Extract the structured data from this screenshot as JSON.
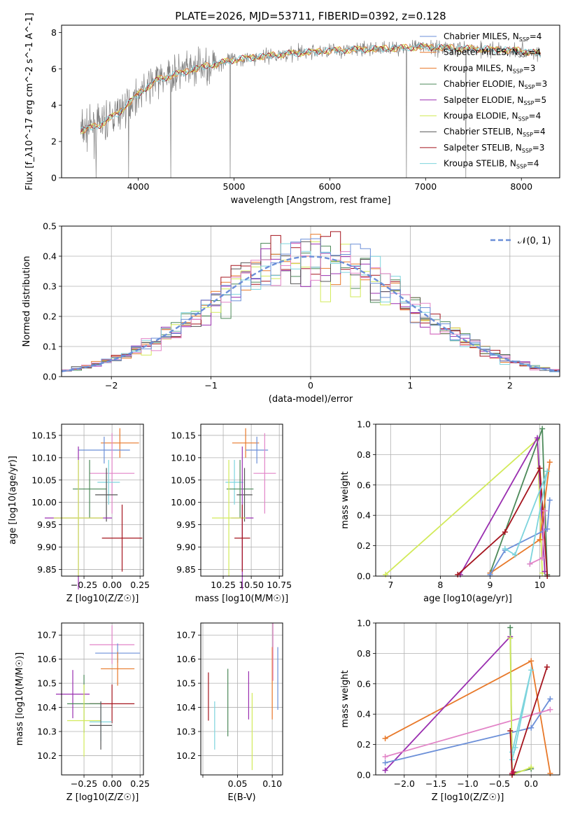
{
  "figure_title": "PLATE=2026, MJD=53711, FIBERID=0392, z=0.128",
  "colors": {
    "blue": "#6b8fd8",
    "orange": "#e8792a",
    "green": "#4d8a5a",
    "purple": "#9a2fb0",
    "yellowgreen": "#d2ea5a",
    "gray": "#555555",
    "darkred": "#a5141e",
    "cyan": "#7dd4dd",
    "pink": "#e284c7",
    "spectrum": "#7f7f7f"
  },
  "chart_data": [
    {
      "id": "spectrum",
      "type": "line",
      "title": "PLATE=2026, MJD=53711, FIBERID=0392, z=0.128",
      "xlabel": "wavelength [Angstrom, rest frame]",
      "ylabel": "Flux [f_λ10^-17 erg cm^-2 s^-1 A^-1]",
      "xlim": [
        3200,
        8400
      ],
      "ylim": [
        0,
        8.4
      ],
      "xticks": [
        4000,
        5000,
        6000,
        7000,
        8000
      ],
      "yticks": [
        0,
        2,
        4,
        6,
        8
      ],
      "grid": false,
      "legend_position": "right",
      "legend": [
        {
          "label": "Chabrier MILES, N_SSP=4",
          "color": "#6b8fd8"
        },
        {
          "label": "Salpeter MILES, N_SSP=4",
          "color": "#e8792a"
        },
        {
          "label": "Kroupa MILES, N_SSP=3",
          "color": "#e8792a"
        },
        {
          "label": "Chabrier ELODIE, N_SSP=3",
          "color": "#4d8a5a"
        },
        {
          "label": "Salpeter ELODIE, N_SSP=5",
          "color": "#9a2fb0"
        },
        {
          "label": "Kroupa ELODIE, N_SSP=4",
          "color": "#d2ea5a"
        },
        {
          "label": "Chabrier STELIB, N_SSP=4",
          "color": "#555555"
        },
        {
          "label": "Salpeter STELIB, N_SSP=3",
          "color": "#a5141e"
        },
        {
          "label": "Kroupa STELIB, N_SSP=4",
          "color": "#7dd4dd"
        }
      ],
      "continuum": {
        "x": [
          3400,
          3600,
          3800,
          4000,
          4200,
          4600,
          5000,
          5500,
          6000,
          6500,
          7000,
          7500,
          8000,
          8200
        ],
        "y": [
          2.6,
          2.9,
          3.6,
          4.6,
          5.4,
          6.0,
          6.5,
          6.8,
          7.0,
          7.1,
          7.2,
          7.1,
          7.0,
          6.8
        ]
      },
      "spikes": [
        {
          "x": 3560,
          "y": 0
        },
        {
          "x": 3900,
          "y": 0
        },
        {
          "x": 4340,
          "y": 0
        },
        {
          "x": 4960,
          "y": 0
        },
        {
          "x": 6800,
          "y": 0
        },
        {
          "x": 7420,
          "y": 0
        }
      ]
    },
    {
      "id": "residuals",
      "type": "step",
      "xlabel": "(data-model)/error",
      "ylabel": "Normed distribution",
      "xlim": [
        -2.5,
        2.5
      ],
      "ylim": [
        0,
        0.5
      ],
      "xticks": [
        -2,
        -1,
        0,
        1,
        2
      ],
      "yticks": [
        0.0,
        0.1,
        0.2,
        0.3,
        0.4,
        0.5
      ],
      "grid": true,
      "legend_position": "top-right",
      "legend": [
        {
          "label": "N(0, 1)",
          "color": "#6b8fd8",
          "style": "dashed"
        }
      ],
      "bin_width": 0.1,
      "histogram_colors": [
        "#4d8a5a",
        "#e8792a",
        "#9a2fb0",
        "#d2ea5a",
        "#555555",
        "#a5141e",
        "#7dd4dd",
        "#e284c7",
        "#6b8fd8"
      ]
    },
    {
      "id": "age_vs_Z",
      "type": "errorbar",
      "xlabel": "Z [log10(Z/Z☉)]",
      "ylabel": "age [log10(age/yr)]",
      "xlim": [
        -0.45,
        0.28
      ],
      "ylim": [
        9.835,
        10.175
      ],
      "xticks": [
        -0.25,
        0.0,
        0.25
      ],
      "xtick_labels": [
        "−0.25",
        "0.00",
        "0.25"
      ],
      "yticks": [
        9.85,
        9.9,
        9.95,
        10.0,
        10.05,
        10.1,
        10.15
      ],
      "grid": true,
      "points": [
        {
          "color": "#e8792a",
          "x": 0.07,
          "xerr": 0.17,
          "y": 10.133,
          "yerr": 0.033
        },
        {
          "color": "#6b8fd8",
          "x": -0.07,
          "xerr": 0.23,
          "y": 10.117,
          "yerr": 0.03
        },
        {
          "color": "#e284c7",
          "x": 0.0,
          "xerr": 0.2,
          "y": 10.065,
          "yerr": 0.09
        },
        {
          "color": "#7dd4dd",
          "x": -0.03,
          "xerr": 0.1,
          "y": 10.045,
          "yerr": 0.05
        },
        {
          "color": "#4d8a5a",
          "x": -0.2,
          "xerr": 0.15,
          "y": 10.03,
          "yerr": 0.065
        },
        {
          "color": "#555555",
          "x": -0.05,
          "xerr": 0.1,
          "y": 10.017,
          "yerr": 0.06
        },
        {
          "color": "#9a2fb0",
          "x": -0.3,
          "xerr": 0.3,
          "y": 9.965,
          "yerr": 0.16
        },
        {
          "color": "#d2ea5a",
          "x": -0.3,
          "xerr": 0.22,
          "y": 9.965,
          "yerr": 0.13
        },
        {
          "color": "#a5141e",
          "x": 0.09,
          "xerr": 0.18,
          "y": 9.92,
          "yerr": 0.075
        }
      ]
    },
    {
      "id": "age_vs_mass",
      "type": "errorbar",
      "xlabel": "mass [log10(M/M☉)]",
      "ylabel": "",
      "xlim": [
        10.05,
        10.78
      ],
      "ylim": [
        9.835,
        10.175
      ],
      "xticks": [
        10.25,
        10.5,
        10.75
      ],
      "yticks": [
        9.85,
        9.9,
        9.95,
        10.0,
        10.05,
        10.1,
        10.15
      ],
      "grid": true,
      "points": [
        {
          "color": "#e8792a",
          "x": 10.45,
          "xerr": 0.12,
          "y": 10.133,
          "yerr": 0.033
        },
        {
          "color": "#6b8fd8",
          "x": 10.55,
          "xerr": 0.1,
          "y": 10.117,
          "yerr": 0.03
        },
        {
          "color": "#e284c7",
          "x": 10.62,
          "xerr": 0.1,
          "y": 10.065,
          "yerr": 0.09
        },
        {
          "color": "#7dd4dd",
          "x": 10.35,
          "xerr": 0.08,
          "y": 10.045,
          "yerr": 0.05
        },
        {
          "color": "#4d8a5a",
          "x": 10.4,
          "xerr": 0.12,
          "y": 10.03,
          "yerr": 0.065
        },
        {
          "color": "#555555",
          "x": 10.44,
          "xerr": 0.07,
          "y": 10.017,
          "yerr": 0.06
        },
        {
          "color": "#9a2fb0",
          "x": 10.42,
          "xerr": 0.1,
          "y": 9.965,
          "yerr": 0.16
        },
        {
          "color": "#d2ea5a",
          "x": 10.3,
          "xerr": 0.15,
          "y": 9.965,
          "yerr": 0.13
        },
        {
          "color": "#a5141e",
          "x": 10.42,
          "xerr": 0.07,
          "y": 9.92,
          "yerr": 0.075
        }
      ]
    },
    {
      "id": "weight_vs_age",
      "type": "line",
      "xlabel": "age [log10(age/yr)]",
      "ylabel": "mass weight",
      "xlim": [
        6.7,
        10.4
      ],
      "ylim": [
        0,
        1.0
      ],
      "xticks": [
        7,
        8,
        9,
        10
      ],
      "yticks": [
        0.0,
        0.2,
        0.4,
        0.6,
        0.8,
        1.0
      ],
      "grid": true,
      "series": [
        {
          "color": "#d2ea5a",
          "x": [
            6.9,
            9.95,
            10.05
          ],
          "y": [
            0.01,
            0.9,
            0.02
          ]
        },
        {
          "color": "#4d8a5a",
          "x": [
            9.0,
            10.05,
            10.15
          ],
          "y": [
            0.02,
            0.97,
            0.01
          ]
        },
        {
          "color": "#9a2fb0",
          "x": [
            8.4,
            9.95,
            10.1
          ],
          "y": [
            0.01,
            0.91,
            0.03
          ]
        },
        {
          "color": "#a5141e",
          "x": [
            8.35,
            9.3,
            10.0,
            10.15
          ],
          "y": [
            0.01,
            0.29,
            0.71,
            0.0
          ]
        },
        {
          "color": "#e8792a",
          "x": [
            9.0,
            10.0,
            10.2
          ],
          "y": [
            0.02,
            0.24,
            0.75
          ]
        },
        {
          "color": "#6b8fd8",
          "x": [
            9.0,
            9.3,
            10.15,
            10.2
          ],
          "y": [
            0.01,
            0.17,
            0.31,
            0.5
          ]
        },
        {
          "color": "#7dd4dd",
          "x": [
            9.3,
            9.5,
            10.15,
            9.8
          ],
          "y": [
            0.18,
            0.14,
            0.69,
            0.08
          ]
        },
        {
          "color": "#e284c7",
          "x": [
            9.8,
            10.05,
            10.1
          ],
          "y": [
            0.08,
            0.12,
            0.43
          ]
        }
      ]
    },
    {
      "id": "mass_vs_Z",
      "type": "errorbar",
      "xlabel": "Z [log10(Z/Z☉)]",
      "ylabel": "mass [log10(M/M☉)]",
      "xlim": [
        -0.45,
        0.28
      ],
      "ylim": [
        10.12,
        10.75
      ],
      "xticks": [
        -0.25,
        0.0,
        0.25
      ],
      "xtick_labels": [
        "−0.25",
        "0.00",
        "0.25"
      ],
      "yticks": [
        10.2,
        10.3,
        10.4,
        10.5,
        10.6,
        10.7
      ],
      "grid": true,
      "points": [
        {
          "color": "#e284c7",
          "x": 0.0,
          "xerr": 0.2,
          "y": 10.66,
          "yerr": 0.08
        },
        {
          "color": "#6b8fd8",
          "x": 0.05,
          "xerr": 0.2,
          "y": 10.625,
          "yerr": 0.04
        },
        {
          "color": "#e8792a",
          "x": 0.05,
          "xerr": 0.15,
          "y": 10.56,
          "yerr": 0.07
        },
        {
          "color": "#9a2fb0",
          "x": -0.35,
          "xerr": 0.15,
          "y": 10.455,
          "yerr": 0.1
        },
        {
          "color": "#a5141e",
          "x": 0.0,
          "xerr": 0.2,
          "y": 10.415,
          "yerr": 0.08
        },
        {
          "color": "#4d8a5a",
          "x": -0.25,
          "xerr": 0.15,
          "y": 10.415,
          "yerr": 0.12
        },
        {
          "color": "#d2ea5a",
          "x": -0.25,
          "xerr": 0.15,
          "y": 10.345,
          "yerr": 0.15
        },
        {
          "color": "#7dd4dd",
          "x": -0.1,
          "xerr": 0.1,
          "y": 10.34,
          "yerr": 0.08
        },
        {
          "color": "#555555",
          "x": -0.1,
          "xerr": 0.1,
          "y": 10.325,
          "yerr": 0.1
        }
      ]
    },
    {
      "id": "mass_vs_ebv",
      "type": "errorbar",
      "xlabel": "E(B-V)",
      "ylabel": "",
      "xlim": [
        -0.003,
        0.115
      ],
      "ylim": [
        10.12,
        10.75
      ],
      "xticks": [
        0.0,
        0.05,
        0.1
      ],
      "xtick_labels": [
        "",
        "0.05",
        "0.10"
      ],
      "yticks": [
        10.2,
        10.3,
        10.4,
        10.5,
        10.6,
        10.7
      ],
      "grid": true,
      "points": [
        {
          "color": "#a5141e",
          "x": 0.008,
          "xerr": 0,
          "y": 10.445,
          "yerr": 0.1
        },
        {
          "color": "#7dd4dd",
          "x": 0.017,
          "xerr": 0,
          "y": 10.325,
          "yerr": 0.1
        },
        {
          "color": "#4d8a5a",
          "x": 0.036,
          "xerr": 0,
          "y": 10.42,
          "yerr": 0.14
        },
        {
          "color": "#9a2fb0",
          "x": 0.066,
          "xerr": 0,
          "y": 10.45,
          "yerr": 0.1
        },
        {
          "color": "#d2ea5a",
          "x": 0.071,
          "xerr": 0,
          "y": 10.3,
          "yerr": 0.16
        },
        {
          "color": "#e8792a",
          "x": 0.1,
          "xerr": 0,
          "y": 10.5,
          "yerr": 0.15
        },
        {
          "color": "#e284c7",
          "x": 0.101,
          "xerr": 0,
          "y": 10.63,
          "yerr": 0.12
        },
        {
          "color": "#6b8fd8",
          "x": 0.108,
          "xerr": 0,
          "y": 10.52,
          "yerr": 0.13
        }
      ]
    },
    {
      "id": "weight_vs_Z",
      "type": "line",
      "xlabel": "Z [log10(Z/Z☉)]",
      "ylabel": "mass weight",
      "xlim": [
        -2.45,
        0.45
      ],
      "ylim": [
        0,
        1.0
      ],
      "xticks": [
        -2.0,
        -1.5,
        -1.0,
        -0.5,
        0.0
      ],
      "xtick_labels": [
        "−2.0",
        "−1.5",
        "−1.0",
        "−0.5",
        "0.0"
      ],
      "yticks": [
        0.0,
        0.2,
        0.4,
        0.6,
        0.8,
        1.0
      ],
      "grid": true,
      "series": [
        {
          "color": "#e8792a",
          "x": [
            -2.3,
            0.0,
            0.3
          ],
          "y": [
            0.24,
            0.75,
            0.01
          ]
        },
        {
          "color": "#9a2fb0",
          "x": [
            -2.3,
            -0.33
          ],
          "y": [
            0.03,
            0.91
          ]
        },
        {
          "color": "#4d8a5a",
          "x": [
            -0.33,
            -0.3,
            0.0
          ],
          "y": [
            0.97,
            0.01,
            0.04
          ]
        },
        {
          "color": "#6b8fd8",
          "x": [
            -2.3,
            0.0,
            0.3
          ],
          "y": [
            0.08,
            0.31,
            0.5
          ]
        },
        {
          "color": "#e284c7",
          "x": [
            -2.3,
            0.3
          ],
          "y": [
            0.12,
            0.43
          ]
        },
        {
          "color": "#d2ea5a",
          "x": [
            -0.33,
            -0.3,
            0.0
          ],
          "y": [
            0.9,
            0.0,
            0.05
          ]
        },
        {
          "color": "#7dd4dd",
          "x": [
            -0.3,
            -0.25,
            0.0,
            -0.3
          ],
          "y": [
            0.1,
            0.18,
            0.69,
            0.15
          ]
        },
        {
          "color": "#a5141e",
          "x": [
            -0.33,
            -0.3,
            0.25
          ],
          "y": [
            0.29,
            0.0,
            0.71
          ]
        },
        {
          "color": "#c0144a",
          "x": [
            -0.3,
            -0.28
          ],
          "y": [
            0.01,
            0.02
          ]
        }
      ]
    }
  ]
}
